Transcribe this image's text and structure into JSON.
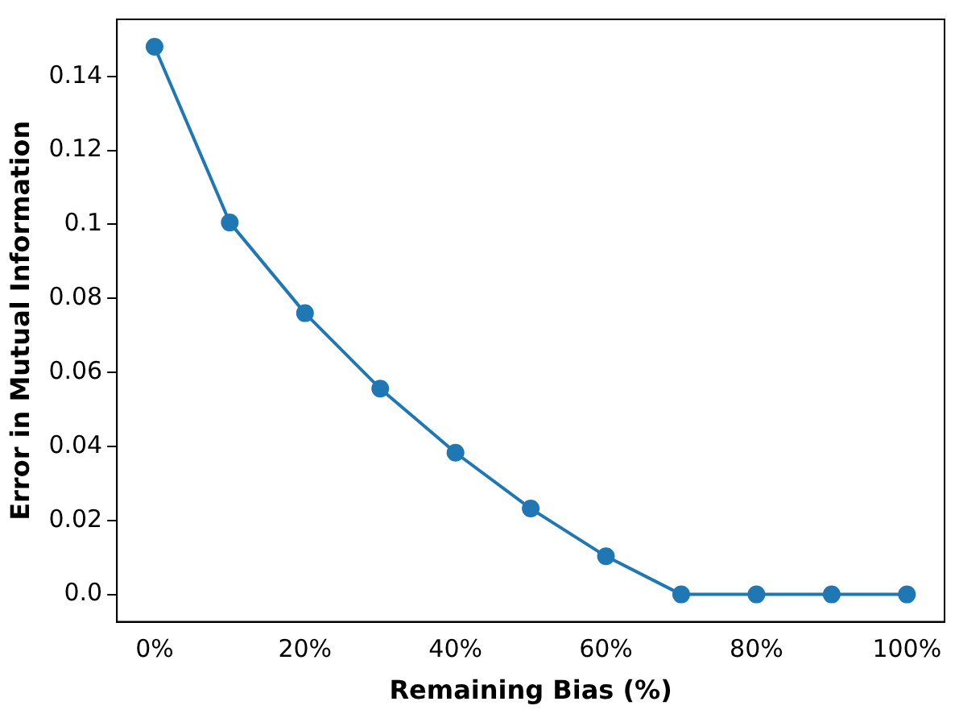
{
  "chart_data": {
    "type": "line",
    "xlabel": "Remaining Bias (%)",
    "ylabel": "Error in Mutual Information",
    "x": [
      0,
      10,
      20,
      30,
      40,
      50,
      60,
      70,
      80,
      90,
      100
    ],
    "series": [
      {
        "color": "#1f77b4",
        "values": [
          0.148,
          0.1005,
          0.076,
          0.0556,
          0.0383,
          0.0232,
          0.0103,
          0,
          0,
          0,
          0
        ]
      }
    ],
    "xlim": [
      -5,
      105
    ],
    "xticks": [
      {
        "value": 0,
        "label": "0%"
      },
      {
        "value": 20,
        "label": "20%"
      },
      {
        "value": 40,
        "label": "40%"
      },
      {
        "value": 60,
        "label": "60%"
      },
      {
        "value": 80,
        "label": "80%"
      },
      {
        "value": 100,
        "label": "100%"
      }
    ],
    "ylim": [
      -0.0074,
      0.1554
    ],
    "yticks": [
      {
        "value": 0,
        "label": "0.0"
      },
      0.02,
      0.04,
      0.06,
      0.08,
      {
        "value": 0.1,
        "label": "0.1"
      },
      0.12,
      0.14
    ],
    "grid": false,
    "legend": false,
    "marker": "circle",
    "line_style": "solid"
  }
}
